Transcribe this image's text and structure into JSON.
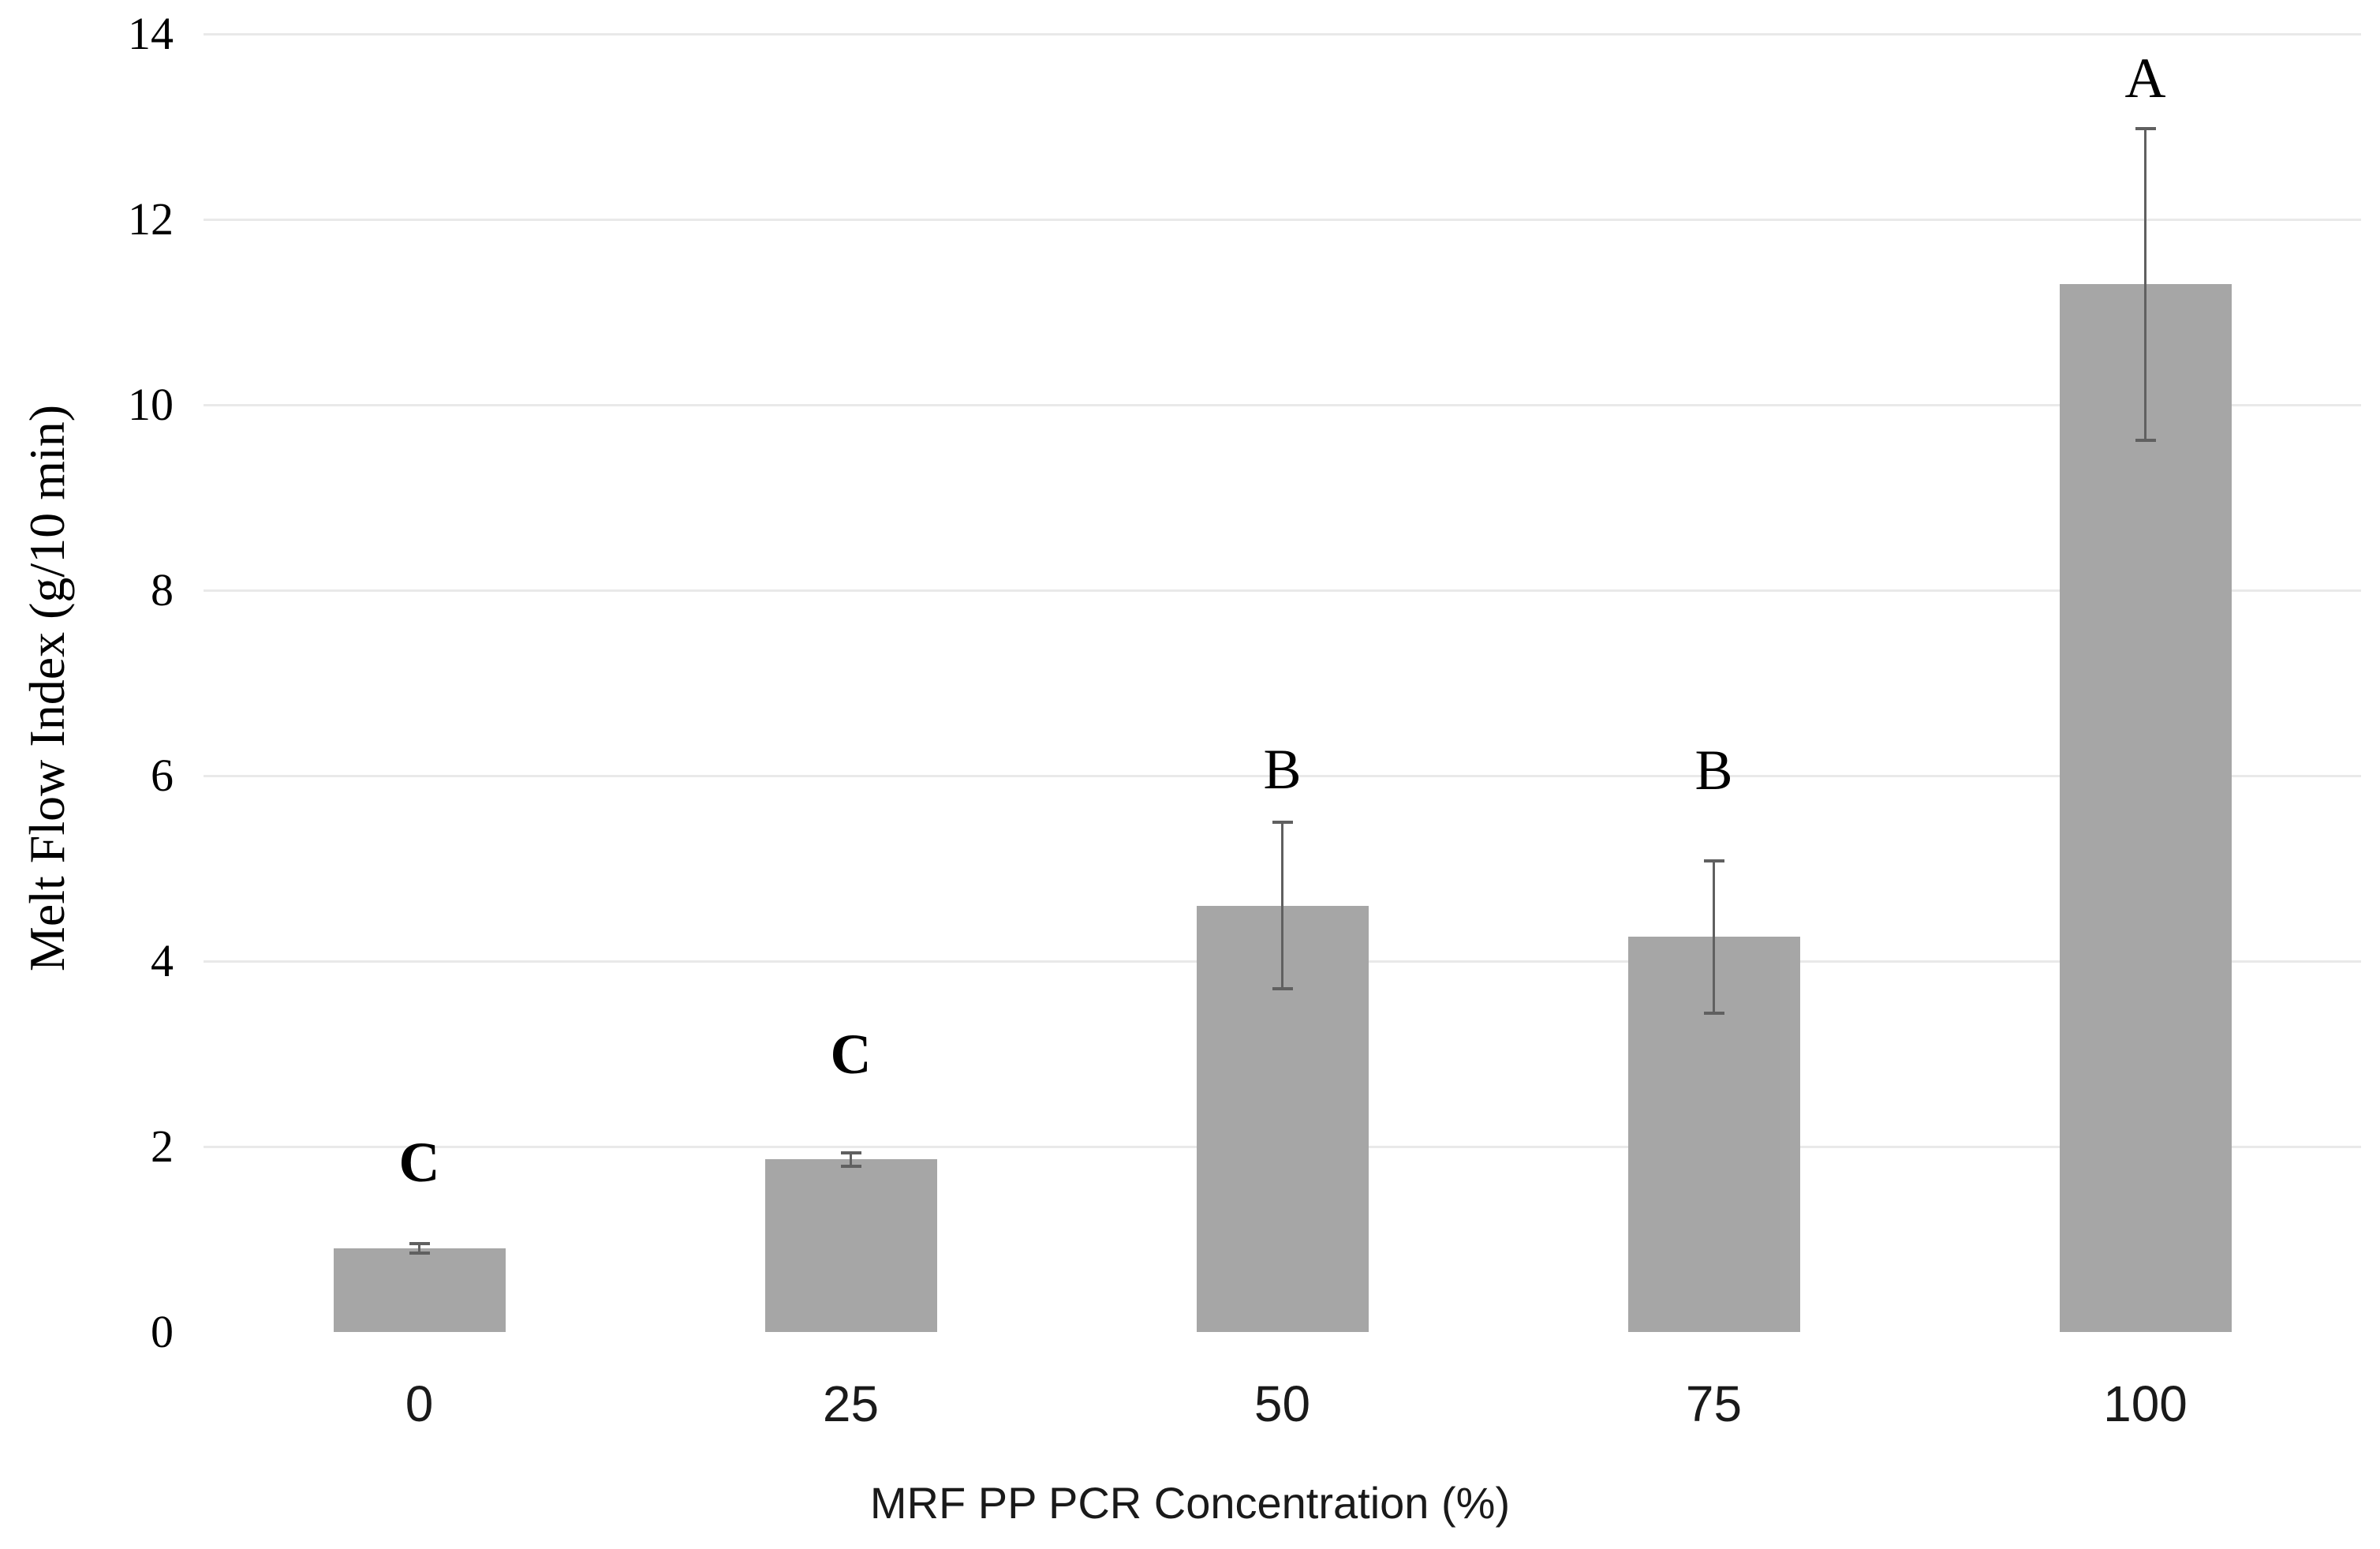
{
  "chart_data": {
    "type": "bar",
    "title": "",
    "xlabel": "MRF PP PCR Concentration (%)",
    "ylabel": "Melt Flow Index (g/10 min)",
    "categories": [
      "0",
      "25",
      "50",
      "75",
      "100"
    ],
    "values": [
      0.9,
      1.86,
      4.6,
      4.26,
      11.3
    ],
    "error_bars": [
      0.05,
      0.07,
      0.9,
      0.82,
      1.68
    ],
    "sig_letters": [
      {
        "text": "C",
        "bold": true,
        "y": 1.83
      },
      {
        "text": "C",
        "bold": true,
        "y": 3.0
      },
      {
        "text": "B",
        "bold": false,
        "y": 6.07
      },
      {
        "text": "B",
        "bold": false,
        "y": 6.06
      },
      {
        "text": "A",
        "bold": false,
        "y": 13.52
      }
    ],
    "ylim": [
      0,
      14
    ],
    "yticks": [
      0,
      2,
      4,
      6,
      8,
      10,
      12,
      14
    ],
    "grid": "horizontal",
    "legend": "none",
    "bar_color": "#a6a6a6",
    "error_color": "#606060",
    "grid_color": "#e9e9e9"
  }
}
